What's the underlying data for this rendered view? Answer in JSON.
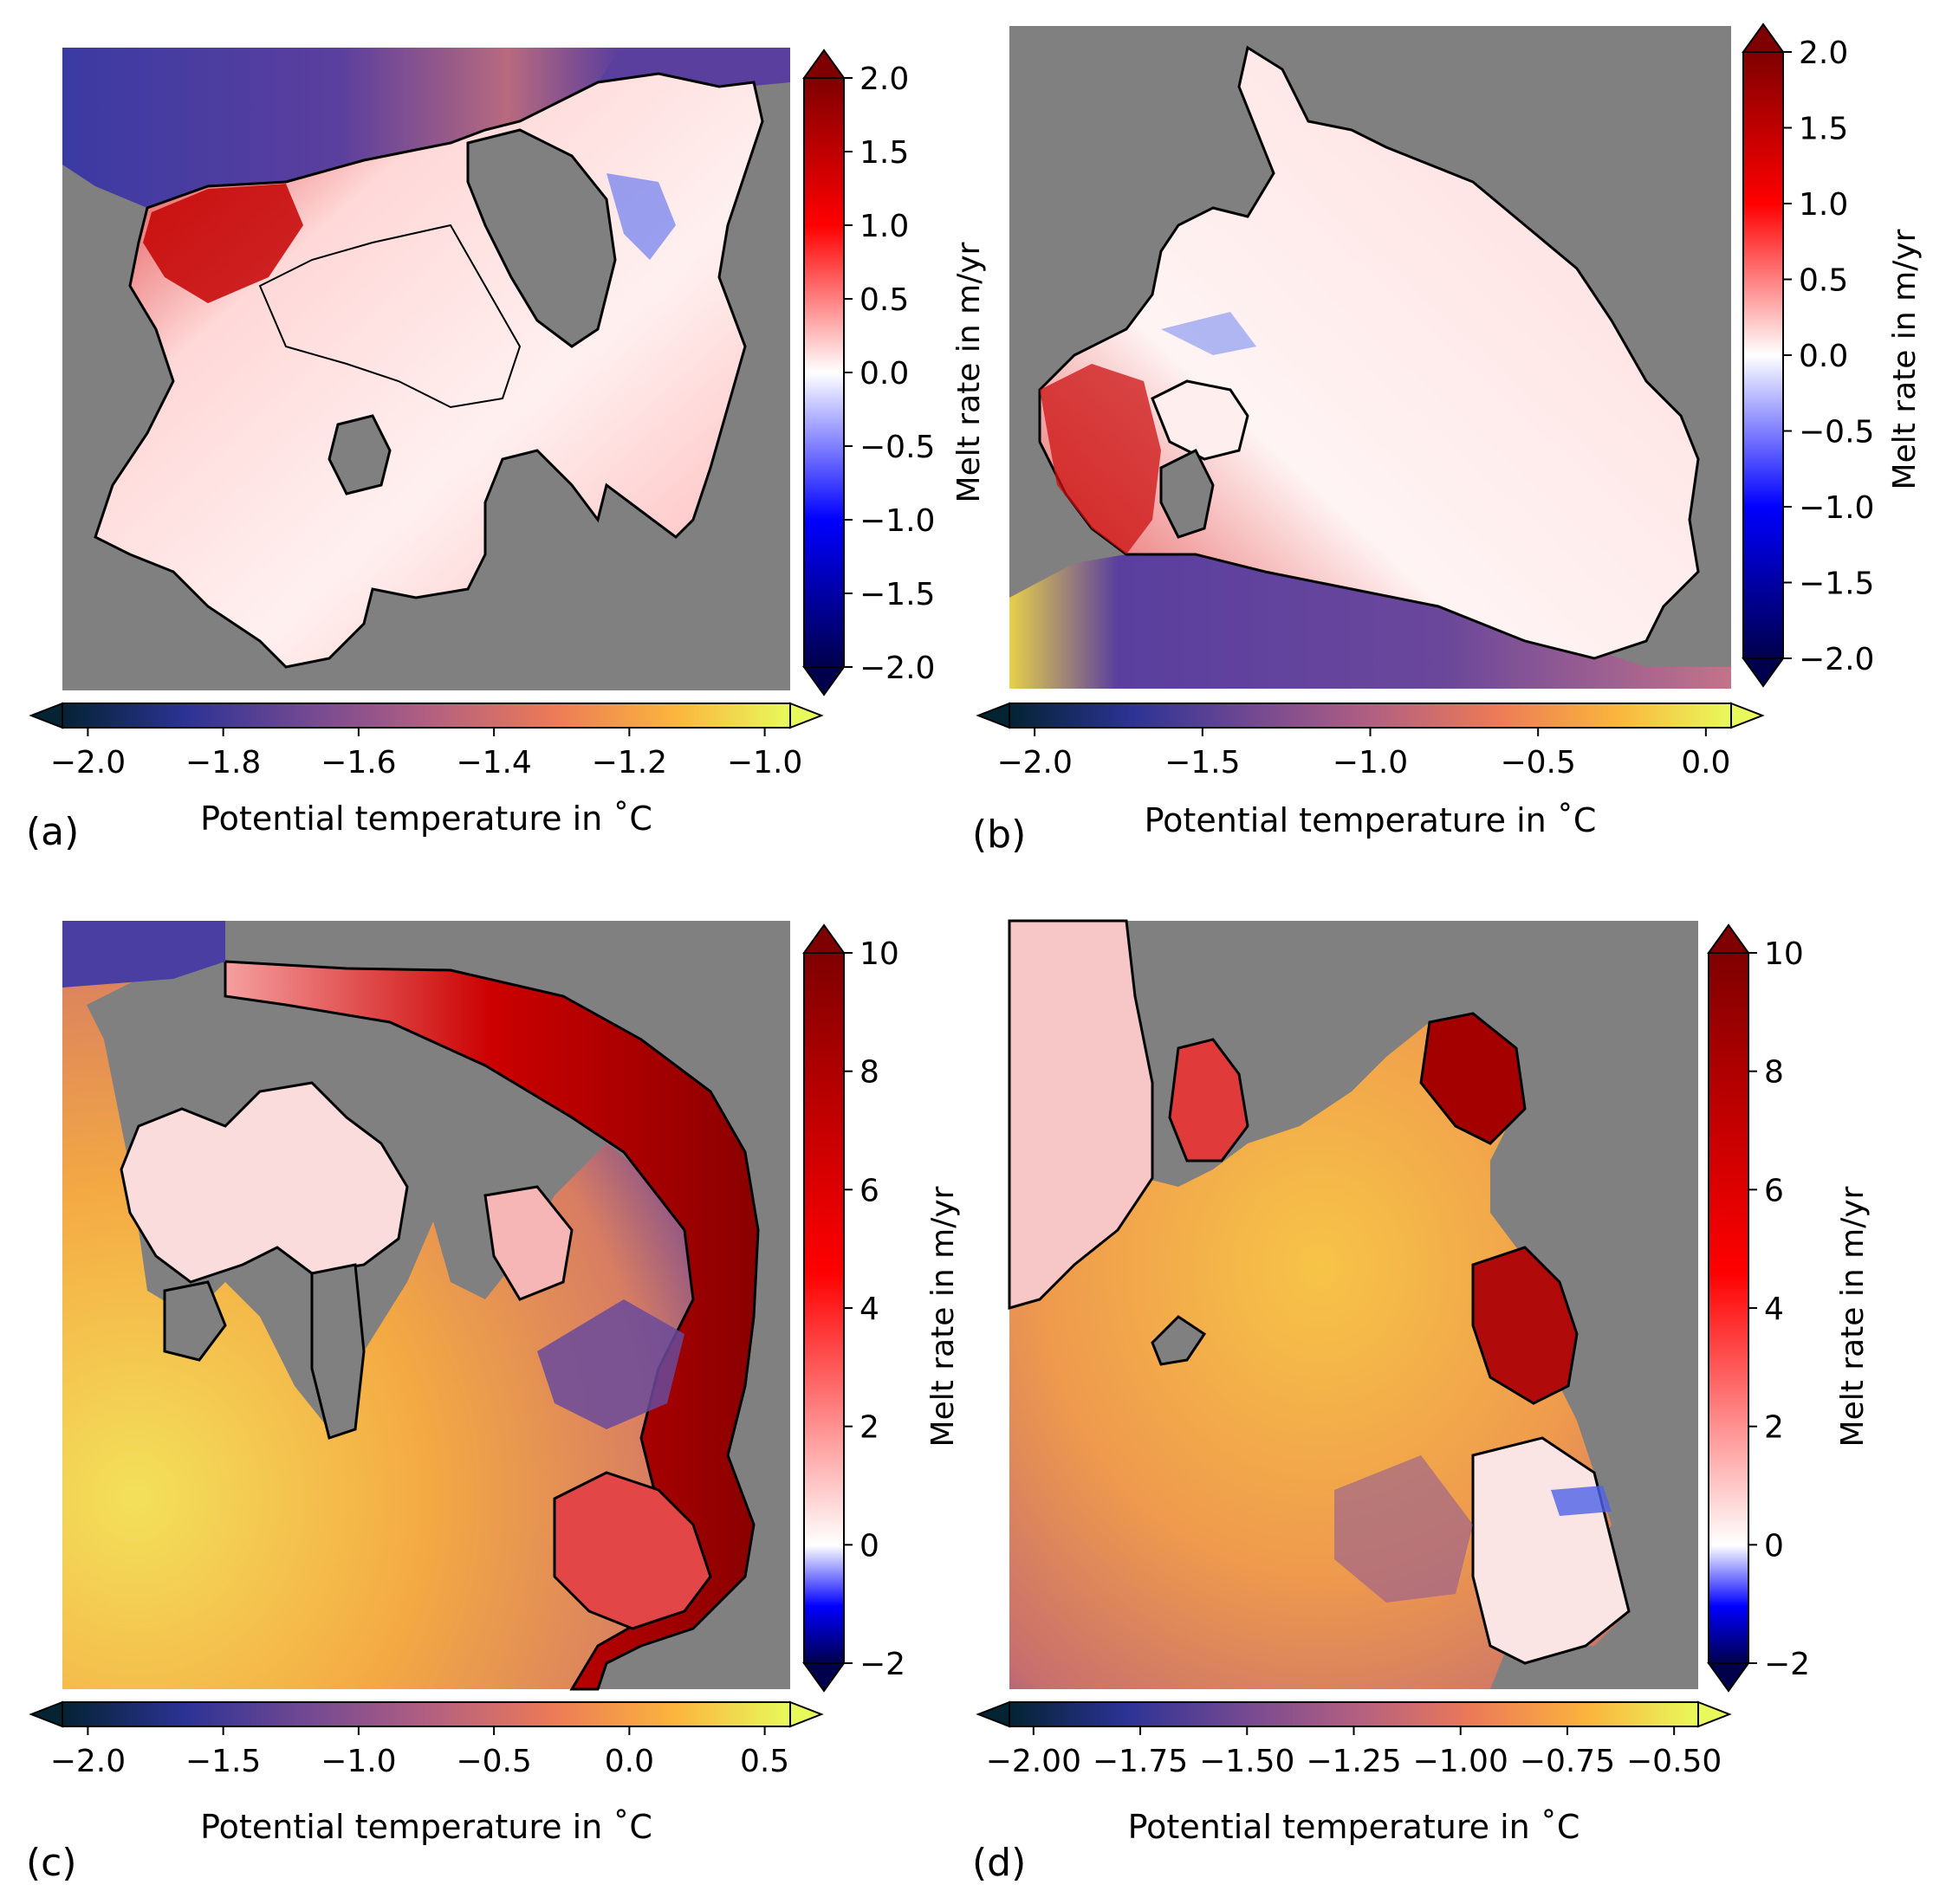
{
  "figure": {
    "panel_labels": [
      "(a)",
      "(b)",
      "(c)",
      "(d)"
    ]
  },
  "chart_data": [
    {
      "type": "heatmap",
      "panel": "(a)",
      "melt_colorbar": {
        "label": "Melt rate in m/yr",
        "ticks": [
          "2.0",
          "1.5",
          "1.0",
          "0.5",
          "0.0",
          "−0.5",
          "−1.0",
          "−1.5",
          "−2.0"
        ],
        "range": [
          -2.0,
          2.0
        ],
        "orientation": "vertical",
        "placement": "right"
      },
      "temperature_colorbar": {
        "label": "Potential temperature in ˚C",
        "ticks": [
          "−2.0",
          "−1.8",
          "−1.6",
          "−1.4",
          "−1.2",
          "−1.0"
        ],
        "range": [
          -2.0,
          -1.0
        ],
        "orientation": "horizontal",
        "placement": "bottom"
      }
    },
    {
      "type": "heatmap",
      "panel": "(b)",
      "melt_colorbar": {
        "label": "Melt rate in m/yr",
        "ticks": [
          "2.0",
          "1.5",
          "1.0",
          "0.5",
          "0.0",
          "−0.5",
          "−1.0",
          "−1.5",
          "−2.0"
        ],
        "range": [
          -2.0,
          2.0
        ],
        "orientation": "vertical",
        "placement": "right"
      },
      "temperature_colorbar": {
        "label": "Potential temperature in ˚C",
        "ticks": [
          "−2.0",
          "−1.5",
          "−1.0",
          "−0.5",
          "0.0"
        ],
        "range": [
          -2.0,
          0.0
        ],
        "orientation": "horizontal",
        "placement": "bottom"
      }
    },
    {
      "type": "heatmap",
      "panel": "(c)",
      "melt_colorbar": {
        "label": "Melt rate in m/yr",
        "ticks": [
          "10",
          "8",
          "6",
          "4",
          "2",
          "0",
          "−2"
        ],
        "range": [
          -2,
          10
        ],
        "orientation": "vertical",
        "placement": "right"
      },
      "temperature_colorbar": {
        "label": "Potential temperature in ˚C",
        "ticks": [
          "−2.0",
          "−1.5",
          "−1.0",
          "−0.5",
          "0.0",
          "0.5"
        ],
        "range": [
          -2.0,
          0.5
        ],
        "orientation": "horizontal",
        "placement": "bottom"
      }
    },
    {
      "type": "heatmap",
      "panel": "(d)",
      "melt_colorbar": {
        "label": "Melt rate in m/yr",
        "ticks": [
          "10",
          "8",
          "6",
          "4",
          "2",
          "0",
          "−2"
        ],
        "range": [
          -2,
          10
        ],
        "orientation": "vertical",
        "placement": "right"
      },
      "temperature_colorbar": {
        "label": "Potential temperature in ˚C",
        "ticks": [
          "−2.00",
          "−1.75",
          "−1.50",
          "−1.25",
          "−1.00",
          "−0.75",
          "−0.50"
        ],
        "range": [
          -2.0,
          -0.5
        ],
        "orientation": "horizontal",
        "placement": "bottom"
      }
    }
  ],
  "colors": {
    "land_mask": "#808080",
    "ice_front_line": "#000000",
    "thermal_cmap": [
      "#042333",
      "#2c3395",
      "#744992",
      "#b15f82",
      "#eb7958",
      "#fbb43d",
      "#e8fa5b"
    ],
    "melt_cmap": [
      "#00004c",
      "#0000ff",
      "#ffffff",
      "#ff0000",
      "#7f0000"
    ]
  }
}
